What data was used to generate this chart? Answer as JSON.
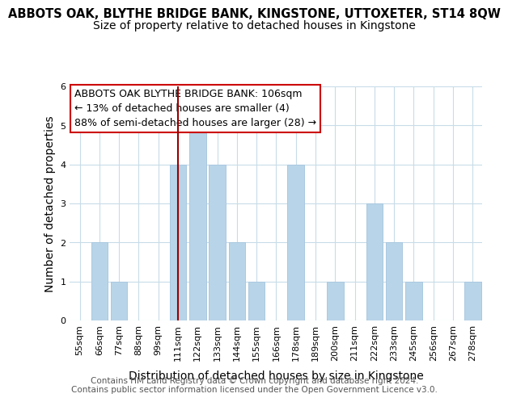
{
  "title": "ABBOTS OAK, BLYTHE BRIDGE BANK, KINGSTONE, UTTOXETER, ST14 8QW",
  "subtitle": "Size of property relative to detached houses in Kingstone",
  "xlabel": "Distribution of detached houses by size in Kingstone",
  "ylabel": "Number of detached properties",
  "footer_line1": "Contains HM Land Registry data © Crown copyright and database right 2024.",
  "footer_line2": "Contains public sector information licensed under the Open Government Licence v3.0.",
  "bin_labels": [
    "55sqm",
    "66sqm",
    "77sqm",
    "88sqm",
    "99sqm",
    "111sqm",
    "122sqm",
    "133sqm",
    "144sqm",
    "155sqm",
    "166sqm",
    "178sqm",
    "189sqm",
    "200sqm",
    "211sqm",
    "222sqm",
    "233sqm",
    "245sqm",
    "256sqm",
    "267sqm",
    "278sqm"
  ],
  "bar_heights": [
    0,
    2,
    1,
    0,
    0,
    4,
    5,
    4,
    2,
    1,
    0,
    4,
    0,
    1,
    0,
    3,
    2,
    1,
    0,
    0,
    1
  ],
  "bar_color": "#b8d4e8",
  "bar_edge_color": "#aac8e0",
  "vline_color": "#990000",
  "vline_x_index": 5,
  "ylim": [
    0,
    6
  ],
  "yticks": [
    0,
    1,
    2,
    3,
    4,
    5,
    6
  ],
  "annotation_text_line1": "ABBOTS OAK BLYTHE BRIDGE BANK: 106sqm",
  "annotation_text_line2": "← 13% of detached houses are smaller (4)",
  "annotation_text_line3": "88% of semi-detached houses are larger (28) →",
  "background_color": "#ffffff",
  "grid_color": "#c8dce8",
  "title_fontsize": 10.5,
  "subtitle_fontsize": 10,
  "axis_label_fontsize": 10,
  "tick_fontsize": 8,
  "annotation_fontsize": 9,
  "footer_fontsize": 7.5
}
